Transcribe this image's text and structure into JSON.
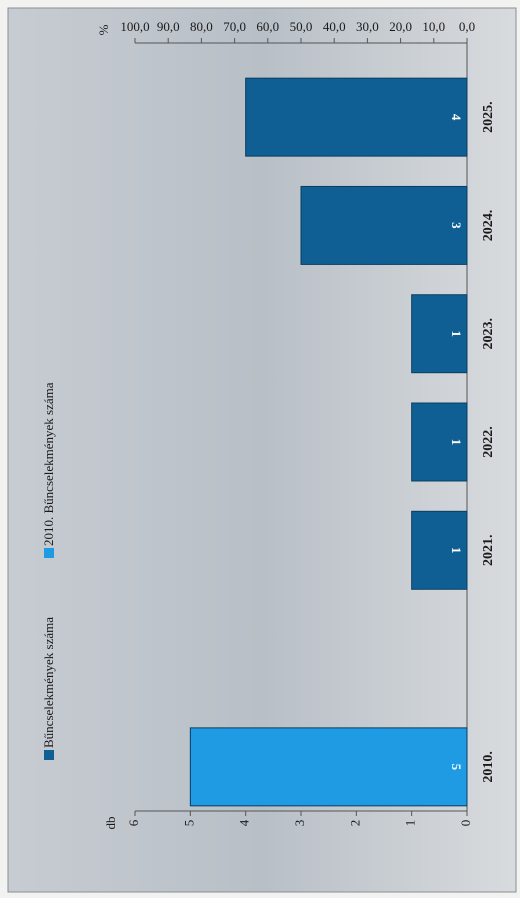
{
  "chart_data": {
    "type": "bar",
    "categories": [
      "2010.",
      null,
      "2021.",
      "2022.",
      "2023.",
      "2024.",
      "2025."
    ],
    "series": [
      {
        "name": "Bűncselekmények száma",
        "color": "#0f5f95",
        "values": [
          null,
          null,
          1,
          1,
          1,
          3,
          4
        ]
      },
      {
        "name": "2010. Bűncselekmények száma",
        "color": "#1e9be2",
        "values": [
          5,
          null,
          null,
          null,
          null,
          null,
          null
        ]
      }
    ],
    "ylabel": "db",
    "ylim": [
      0,
      6
    ],
    "yticks": [
      0,
      1,
      2,
      3,
      4,
      5,
      6
    ],
    "y2label": "%",
    "y2lim": [
      0,
      100
    ],
    "y2ticks": [
      {
        "value": 0,
        "label": "0,0"
      },
      {
        "value": 10,
        "label": "10,0"
      },
      {
        "value": 20,
        "label": "20,0"
      },
      {
        "value": 30,
        "label": "30,0"
      },
      {
        "value": 40,
        "label": "40,0"
      },
      {
        "value": 50,
        "label": "50,0"
      },
      {
        "value": 60,
        "label": "60,0"
      },
      {
        "value": 70,
        "label": "70,0"
      },
      {
        "value": 80,
        "label": "80,0"
      },
      {
        "value": 90,
        "label": "90,0"
      },
      {
        "value": 100,
        "label": "100,0"
      }
    ]
  }
}
